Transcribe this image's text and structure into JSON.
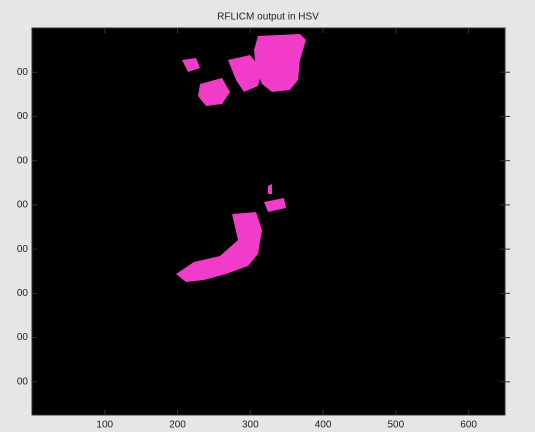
{
  "chart_data": {
    "type": "image",
    "title": "RFLICM output in HSV",
    "xlim": [
      0,
      650
    ],
    "xticks": [
      100,
      200,
      300,
      400,
      500,
      600
    ],
    "ylim": [
      0,
      875
    ],
    "reverse_y": true,
    "yticks": [
      {
        "value": 100,
        "label": "00"
      },
      {
        "value": 200,
        "label": "00"
      },
      {
        "value": 300,
        "label": "00"
      },
      {
        "value": 400,
        "label": "00"
      },
      {
        "value": 500,
        "label": "00"
      },
      {
        "value": 600,
        "label": "00"
      },
      {
        "value": 700,
        "label": "00"
      },
      {
        "value": 800,
        "label": "00"
      }
    ]
  }
}
